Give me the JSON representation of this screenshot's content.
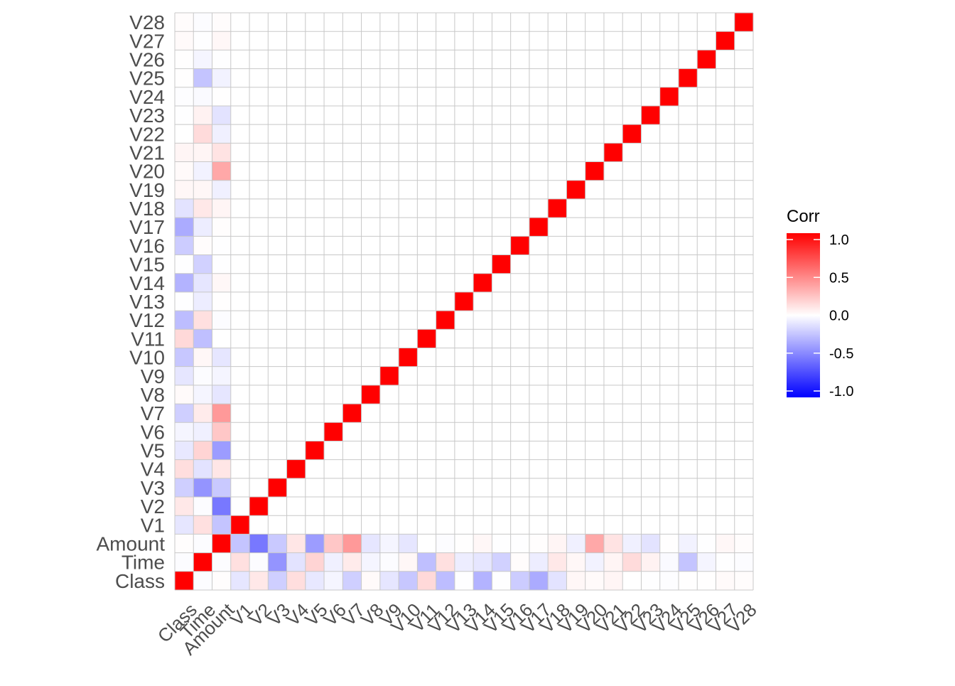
{
  "chart_data": {
    "type": "heatmap",
    "variables": [
      "Class",
      "Time",
      "Amount",
      "V1",
      "V2",
      "V3",
      "V4",
      "V5",
      "V6",
      "V7",
      "V8",
      "V9",
      "V10",
      "V11",
      "V12",
      "V13",
      "V14",
      "V15",
      "V16",
      "V17",
      "V18",
      "V19",
      "V20",
      "V21",
      "V22",
      "V23",
      "V24",
      "V25",
      "V26",
      "V27",
      "V28"
    ],
    "x_categories": [
      "Class",
      "Time",
      "Amount",
      "V1",
      "V2",
      "V3",
      "V4",
      "V5",
      "V6",
      "V7",
      "V8",
      "V9",
      "V10",
      "V11",
      "V12",
      "V13",
      "V14",
      "V15",
      "V16",
      "V17",
      "V18",
      "V19",
      "V20",
      "V21",
      "V22",
      "V23",
      "V24",
      "V25",
      "V26",
      "V27",
      "V28"
    ],
    "y_categories": [
      "Class",
      "Time",
      "Amount",
      "V1",
      "V2",
      "V3",
      "V4",
      "V5",
      "V6",
      "V7",
      "V8",
      "V9",
      "V10",
      "V11",
      "V12",
      "V13",
      "V14",
      "V15",
      "V16",
      "V17",
      "V18",
      "V19",
      "V20",
      "V21",
      "V22",
      "V23",
      "V24",
      "V25",
      "V26",
      "V27",
      "V28"
    ],
    "correlations_with": {
      "Class": [
        1.0,
        -0.012,
        0.006,
        -0.1,
        0.09,
        -0.19,
        0.13,
        -0.09,
        -0.04,
        -0.19,
        0.02,
        -0.1,
        -0.22,
        0.15,
        -0.26,
        -0.005,
        -0.3,
        -0.004,
        -0.2,
        -0.33,
        -0.11,
        0.03,
        0.02,
        0.04,
        0.0,
        -0.003,
        -0.007,
        0.003,
        0.004,
        0.02,
        0.01
      ],
      "Time": [
        -0.012,
        1.0,
        -0.011,
        0.12,
        -0.01,
        -0.42,
        -0.11,
        0.17,
        -0.06,
        0.08,
        -0.04,
        -0.01,
        0.03,
        -0.25,
        0.12,
        -0.07,
        -0.1,
        -0.18,
        0.01,
        -0.07,
        0.09,
        0.03,
        -0.05,
        0.04,
        0.14,
        0.05,
        -0.02,
        -0.23,
        -0.04,
        -0.005,
        -0.01
      ],
      "Amount": [
        0.006,
        -0.011,
        1.0,
        -0.23,
        -0.53,
        -0.21,
        0.1,
        -0.39,
        0.22,
        0.4,
        -0.1,
        -0.04,
        -0.1,
        0.0,
        -0.01,
        0.005,
        0.03,
        -0.003,
        -0.004,
        0.007,
        0.04,
        -0.06,
        0.34,
        0.11,
        -0.06,
        -0.11,
        0.005,
        -0.05,
        -0.003,
        0.03,
        0.01
      ]
    },
    "legend": {
      "title": "Corr",
      "ticks": [
        "1.0",
        "0.5",
        "0.0",
        "-0.5",
        "-1.0"
      ],
      "range": [
        -1,
        1
      ],
      "colors": {
        "low": "#0000FF",
        "mid": "#FFFFFF",
        "high": "#FF0000"
      },
      "placement": "right"
    },
    "grid": true,
    "diagonal": 1.0
  }
}
